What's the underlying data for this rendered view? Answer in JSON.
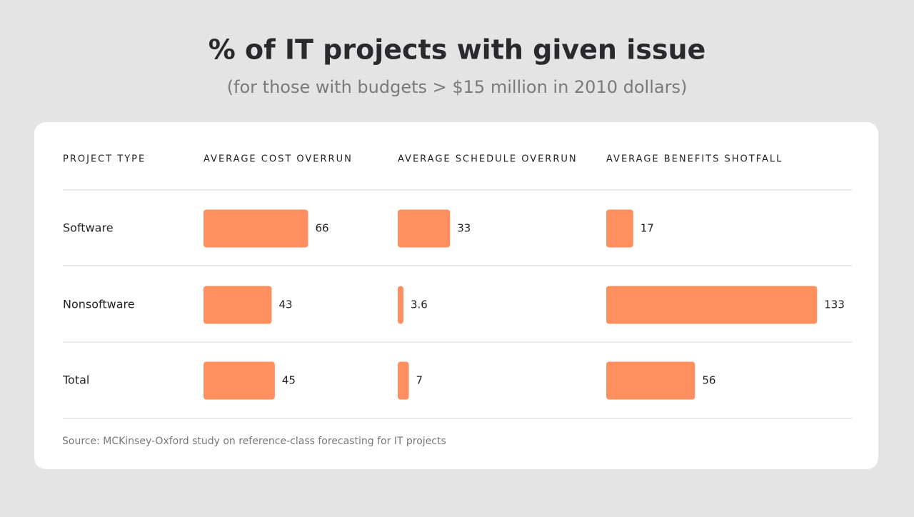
{
  "chart_data": {
    "type": "bar",
    "title": "% of IT projects with given issue",
    "subtitle": "(for those with budgets > $15 million in 2010 dollars)",
    "category_label": "PROJECT TYPE",
    "categories": [
      "Software",
      "Nonsoftware",
      "Total"
    ],
    "series": [
      {
        "name": "AVERAGE COST OVERRUN",
        "color": "#ff8f5e",
        "values": [
          66,
          43,
          45
        ]
      },
      {
        "name": "AVERAGE SCHEDULE OVERRUN",
        "color": "#ff8f5e",
        "values": [
          33,
          3.6,
          7
        ]
      },
      {
        "name": "AVERAGE BENEFITS SHOTFALL",
        "color": "#ff8f5e",
        "values": [
          17,
          133,
          56
        ]
      }
    ],
    "source": "Source: MCKinsey-Oxford study on reference-class forecasting for IT projects"
  }
}
